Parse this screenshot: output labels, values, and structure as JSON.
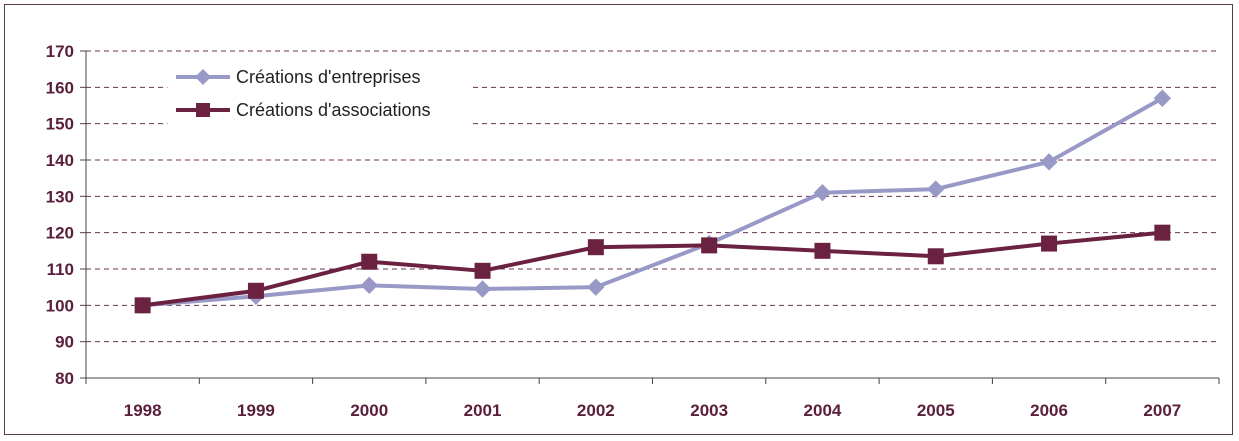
{
  "chart_data": {
    "type": "line",
    "title": "",
    "xlabel": "",
    "ylabel": "",
    "categories": [
      "1998",
      "1999",
      "2000",
      "2001",
      "2002",
      "2003",
      "2004",
      "2005",
      "2006",
      "2007"
    ],
    "ylim": [
      80,
      170
    ],
    "yticks": [
      "80",
      "90",
      "100",
      "110",
      "120",
      "130",
      "140",
      "150",
      "160",
      "170"
    ],
    "grid": "horizontal dashed",
    "legend": "top-left",
    "series": [
      {
        "name": "Créations d'entreprises",
        "color": "#9999c7",
        "marker": "diamond",
        "values": [
          100,
          102.5,
          105.5,
          104.5,
          105,
          117,
          131,
          132,
          139.5,
          157
        ]
      },
      {
        "name": "Créations d'associations",
        "color": "#6b2240",
        "marker": "square",
        "values": [
          100,
          104,
          112,
          109.5,
          116,
          116.5,
          115,
          113.5,
          117,
          120
        ]
      }
    ]
  }
}
